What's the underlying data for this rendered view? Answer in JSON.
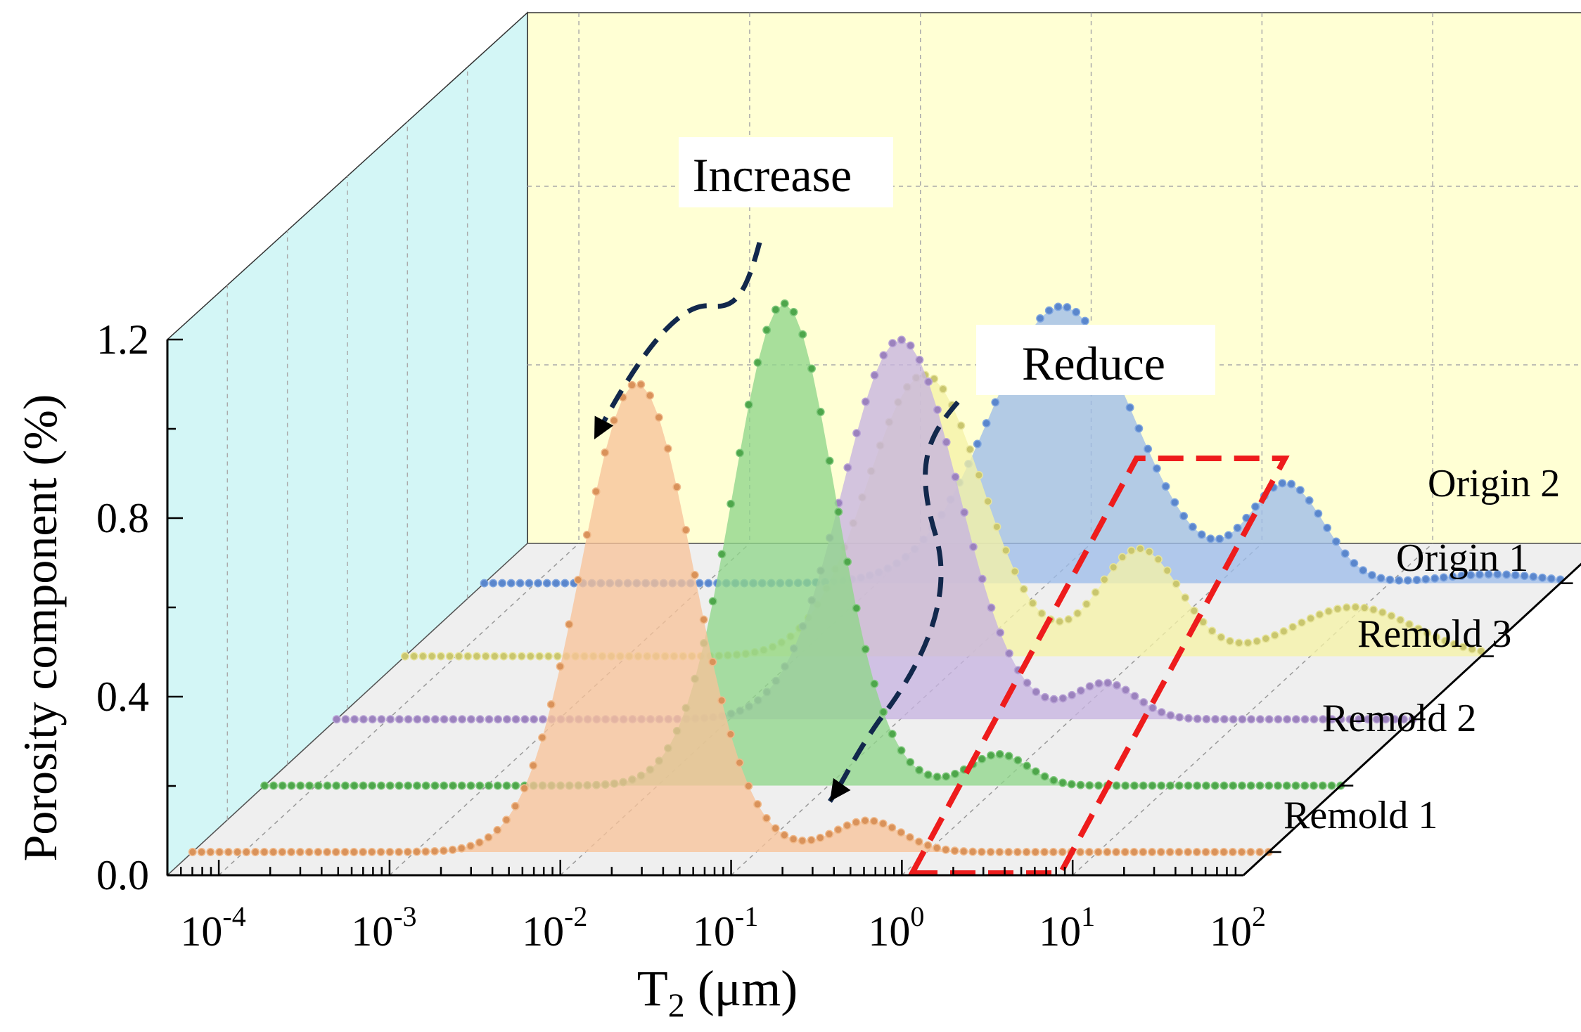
{
  "chart_data": {
    "type": "line",
    "subtype": "3d-waterfall",
    "xlabel": "T",
    "xlabel_subscript": "2",
    "xlabel_unit": " (μm)",
    "ylabel": "Porosity component (%)",
    "x_scale": "log",
    "xlim": [
      5e-05,
      100
    ],
    "ylim": [
      0,
      1.5
    ],
    "x_ticks": [
      {
        "base": "10",
        "exp": "-4"
      },
      {
        "base": "10",
        "exp": "-3"
      },
      {
        "base": "10",
        "exp": "-2"
      },
      {
        "base": "10",
        "exp": "-1"
      },
      {
        "base": "10",
        "exp": "0"
      },
      {
        "base": "10",
        "exp": "1"
      },
      {
        "base": "10",
        "exp": "2"
      }
    ],
    "y_ticks": [
      "0.0",
      "0.4",
      "0.8",
      "1.2"
    ],
    "grid": true,
    "series": [
      {
        "name": "Origin 2",
        "color": "#7fa6e0",
        "marker_color": "#5a86cc",
        "fill": "#9dbde9",
        "x_start": 5e-05,
        "x_end": 100,
        "peaks": [
          {
            "x": 0.12,
            "y": 0.62,
            "w": 0.42
          },
          {
            "x": 2.5,
            "y": 0.22,
            "w": 0.22
          },
          {
            "x": 40,
            "y": 0.02,
            "w": 0.3
          }
        ]
      },
      {
        "name": "Origin 1",
        "color": "#e7e49a",
        "marker_color": "#c9c66e",
        "fill": "#f5f2a6",
        "x_start": 5e-05,
        "x_end": 100,
        "peaks": [
          {
            "x": 0.055,
            "y": 0.63,
            "w": 0.34
          },
          {
            "x": 1.0,
            "y": 0.24,
            "w": 0.24
          },
          {
            "x": 18,
            "y": 0.11,
            "w": 0.35
          }
        ]
      },
      {
        "name": "Remold 3",
        "color": "#b9a3d6",
        "marker_color": "#9b82bd",
        "fill": "#c7b3e0",
        "x_start": 5e-05,
        "x_end": 100,
        "peaks": [
          {
            "x": 0.1,
            "y": 0.85,
            "w": 0.34
          },
          {
            "x": 1.6,
            "y": 0.08,
            "w": 0.18
          }
        ]
      },
      {
        "name": "Remold 2",
        "color": "#7dc77a",
        "marker_color": "#4ea64b",
        "fill": "#8fd68a",
        "x_start": 5e-05,
        "x_end": 100,
        "peaks": [
          {
            "x": 0.055,
            "y": 1.08,
            "w": 0.3
          },
          {
            "x": 1.0,
            "y": 0.07,
            "w": 0.17
          }
        ]
      },
      {
        "name": "Remold 1",
        "color": "#f0b98a",
        "marker_color": "#d9925a",
        "fill": "#f7c39a",
        "x_start": 5e-05,
        "x_end": 100,
        "peaks": [
          {
            "x": 0.02,
            "y": 1.05,
            "w": 0.33
          },
          {
            "x": 0.45,
            "y": 0.07,
            "w": 0.2
          }
        ]
      }
    ],
    "annotations": [
      {
        "text": "Increase"
      },
      {
        "text": "Reduce"
      }
    ],
    "legend_placement": "right"
  }
}
